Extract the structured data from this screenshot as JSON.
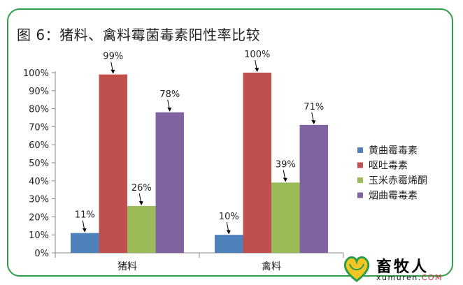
{
  "chart_data": {
    "type": "bar",
    "title": "图 6：猪料、禽料霉菌毒素阳性率比较",
    "categories": [
      "猪料",
      "禽料"
    ],
    "series": [
      {
        "name": "黄曲霉毒素",
        "values": [
          11,
          10
        ],
        "labels": [
          "11%",
          "10%"
        ],
        "color": "#4f81bd"
      },
      {
        "name": "呕吐毒素",
        "values": [
          99,
          100
        ],
        "labels": [
          "99%",
          "100%"
        ],
        "color": "#c0504d"
      },
      {
        "name": "玉米赤霉烯酮",
        "values": [
          26,
          39
        ],
        "labels": [
          "26%",
          "39%"
        ],
        "color": "#9bbb59"
      },
      {
        "name": "烟曲霉毒素",
        "values": [
          78,
          71
        ],
        "labels": [
          "78%",
          "71%"
        ],
        "color": "#8064a2"
      }
    ],
    "yticks": [
      "0%",
      "10%",
      "20%",
      "30%",
      "40%",
      "50%",
      "60%",
      "70%",
      "80%",
      "90%",
      "100%"
    ],
    "ylim": [
      0,
      100
    ],
    "xlabel": "",
    "ylabel": "",
    "grid": false,
    "legend_position": "right"
  },
  "watermark": {
    "name": "畜牧人",
    "domain_main": "xumuren.",
    "domain_tld": "COM",
    "heart_color": "#f3c623",
    "outline_color": "#2e9e48"
  }
}
